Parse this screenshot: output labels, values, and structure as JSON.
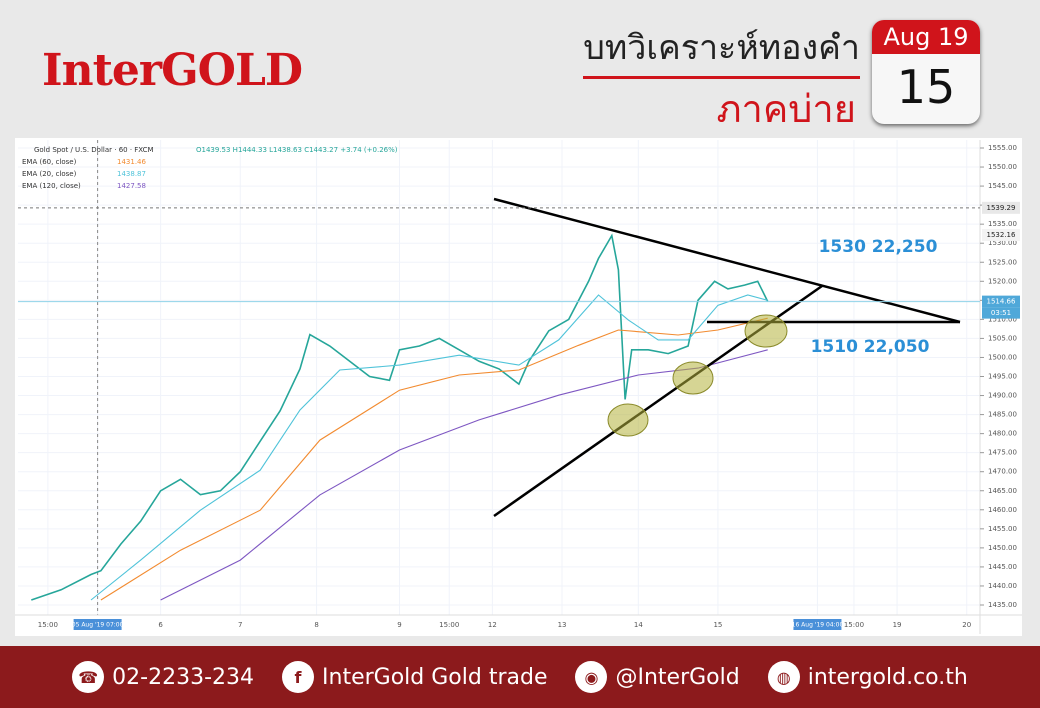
{
  "header": {
    "logo": "InterGOLD",
    "title": "บทวิเคราะห์ทองคำ",
    "subtitle": "ภาคบ่าย",
    "calendar_month": "Aug 19",
    "calendar_day": "15"
  },
  "chart_data": {
    "type": "line",
    "title": "Gold Spot / U.S. Dollar · 60 · FXCM",
    "ohlc_label": "O1439.53 H1444.33 L1438.63 C1443.27 +3.74 (+0.26%)",
    "series": [
      {
        "name": "Gold Spot / U.S. Dollar · 60 · FXCM",
        "color": "#26a69a",
        "x": [
          -11,
          -2,
          7,
          10,
          16,
          22,
          28,
          34,
          40,
          46,
          52,
          58,
          64,
          70,
          73,
          79,
          85,
          91,
          97,
          100,
          106,
          112,
          118,
          124,
          130,
          136,
          139,
          145,
          151,
          157,
          160,
          164,
          166,
          168,
          170,
          175,
          181,
          187,
          190,
          195,
          199,
          204,
          208,
          211
        ],
        "values": [
          1436.3,
          1439,
          1443,
          1444,
          1451,
          1457,
          1465,
          1468,
          1464,
          1465,
          1470,
          1478,
          1486,
          1497,
          1506,
          1503,
          1499,
          1495,
          1494,
          1502,
          1503,
          1505,
          1502,
          1499,
          1497,
          1493,
          1499,
          1507,
          1510,
          1520,
          1526,
          1532,
          1523,
          1489,
          1502,
          1502,
          1501,
          1503,
          1515,
          1520,
          1518,
          1519,
          1520,
          1514.7
        ]
      },
      {
        "name": "EMA (60, close)",
        "color": "#f28b30",
        "legend_value": "1431.46",
        "x": [
          10,
          34,
          58,
          76,
          100,
          118,
          136,
          154,
          166,
          184,
          196,
          211
        ],
        "values": [
          1436.3,
          1449.4,
          1459.9,
          1478.3,
          1491.4,
          1495.4,
          1496.7,
          1503.2,
          1507.2,
          1505.9,
          1507.2,
          1510.3
        ]
      },
      {
        "name": "EMA (20, close)",
        "color": "#4fc3d9",
        "legend_value": "1438.87",
        "x": [
          7,
          22,
          40,
          58,
          70,
          82,
          100,
          118,
          136,
          148,
          160,
          169,
          178,
          187,
          196,
          205,
          211
        ],
        "values": [
          1436.3,
          1446.8,
          1459.9,
          1470.4,
          1486.2,
          1496.7,
          1498,
          1500.6,
          1498,
          1504.6,
          1516.4,
          1509.8,
          1504.6,
          1504.6,
          1513.7,
          1516.4,
          1515
        ]
      },
      {
        "name": "EMA (120, close)",
        "color": "#7e57c2",
        "legend_value": "1427.58",
        "x": [
          28,
          52,
          76,
          100,
          124,
          148,
          172,
          190,
          211
        ],
        "values": [
          1436.3,
          1446.8,
          1463.9,
          1475.7,
          1483.6,
          1490.1,
          1495.4,
          1497.2,
          1502
        ]
      }
    ],
    "xlim": [
      -15,
      275
    ],
    "xticks": [
      {
        "value": -6,
        "label": "15:00"
      },
      {
        "value": 9,
        "label": "05 Aug '19  07:00"
      },
      {
        "value": 28,
        "label": "6"
      },
      {
        "value": 52,
        "label": "7"
      },
      {
        "value": 75,
        "label": "8"
      },
      {
        "value": 100,
        "label": "9"
      },
      {
        "value": 115,
        "label": "15:00"
      },
      {
        "value": 128,
        "label": "12"
      },
      {
        "value": 149,
        "label": "13"
      },
      {
        "value": 172,
        "label": "14"
      },
      {
        "value": 196,
        "label": "15"
      },
      {
        "value": 226,
        "label": "16 Aug '19  04:00"
      },
      {
        "value": 237,
        "label": "15:00"
      },
      {
        "value": 250,
        "label": "19"
      },
      {
        "value": 271,
        "label": "20"
      }
    ],
    "ylim": [
      1435,
      1555
    ],
    "yticks": [
      {
        "value": 1435,
        "label": "1435.00"
      },
      {
        "value": 1440,
        "label": "1440.00"
      },
      {
        "value": 1445,
        "label": "1445.00"
      },
      {
        "value": 1450,
        "label": "1450.00"
      },
      {
        "value": 1455,
        "label": "1455.00"
      },
      {
        "value": 1460,
        "label": "1460.00"
      },
      {
        "value": 1465,
        "label": "1465.00"
      },
      {
        "value": 1470,
        "label": "1470.00"
      },
      {
        "value": 1475,
        "label": "1475.00"
      },
      {
        "value": 1480,
        "label": "1480.00"
      },
      {
        "value": 1485,
        "label": "1485.00"
      },
      {
        "value": 1490,
        "label": "1490.00"
      },
      {
        "value": 1495,
        "label": "1495.00"
      },
      {
        "value": 1500,
        "label": "1500.00"
      },
      {
        "value": 1505,
        "label": "1505.00"
      },
      {
        "value": 1510,
        "label": "1510.00"
      },
      {
        "value": 1515,
        "label": "1515.00"
      },
      {
        "value": 1520,
        "label": "1520.00"
      },
      {
        "value": 1525,
        "label": "1525.00"
      },
      {
        "value": 1530,
        "label": "1530.00"
      },
      {
        "value": 1535,
        "label": "1535.00"
      },
      {
        "value": 1540,
        "label": "1540.00"
      },
      {
        "value": 1545,
        "label": "1545.00"
      },
      {
        "value": 1550,
        "label": "1550.00"
      },
      {
        "value": 1555,
        "label": "1555.00"
      }
    ],
    "crosshair_price": 1539.29,
    "high_price": 1532.16,
    "current_price": 1514.66,
    "countdown": "03:51",
    "annotations": [
      "1530 22,250",
      "1510 22,050"
    ]
  },
  "footer": {
    "items": [
      "02-2233-234",
      "InterGold Gold trade",
      "@InterGold",
      "intergold.co.th"
    ]
  }
}
